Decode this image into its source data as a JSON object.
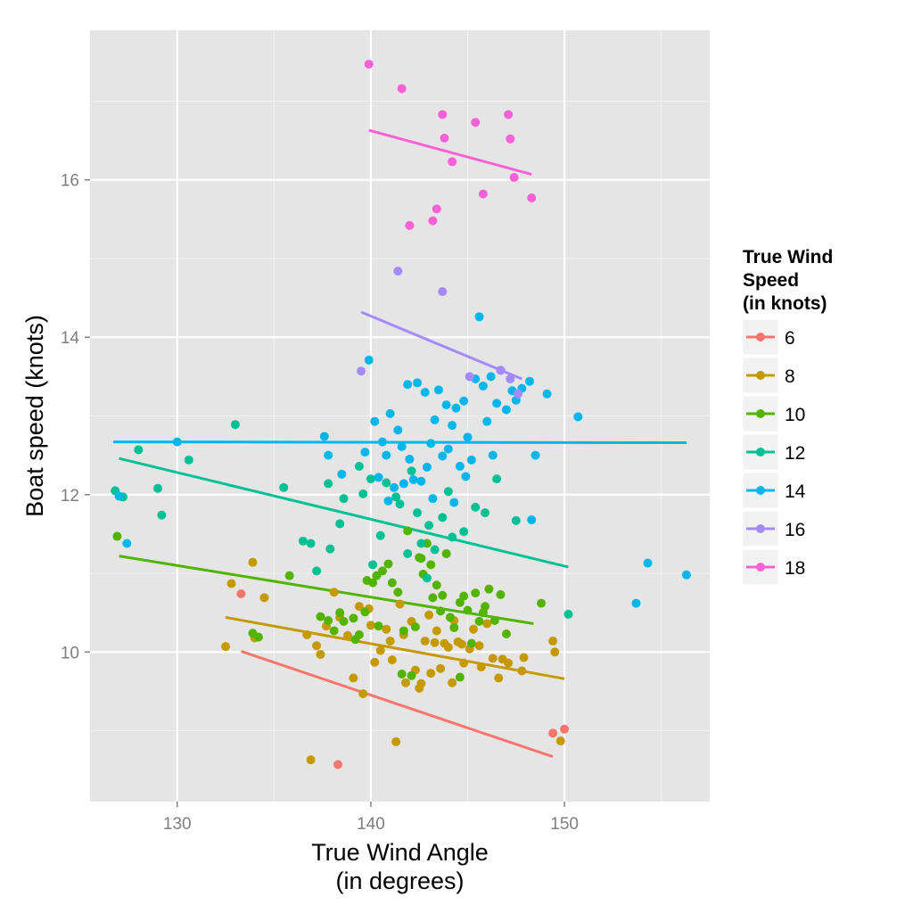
{
  "chart_data": {
    "type": "scatter",
    "xlabel": [
      "True Wind Angle",
      "(in degrees)"
    ],
    "ylabel": "Boat speed (knots)",
    "xlim": [
      125.5,
      157.5
    ],
    "ylim": [
      8.1,
      17.9
    ],
    "x_ticks": [
      130,
      140,
      150
    ],
    "y_ticks": [
      10,
      12,
      14,
      16
    ],
    "grid": true,
    "legend": {
      "title": [
        "True Wind",
        " Speed",
        " (in knots)"
      ],
      "placement": "right"
    },
    "series": [
      {
        "name": "6",
        "color": "#F8766D",
        "points": [
          [
            133.3,
            10.74
          ],
          [
            138.3,
            8.57
          ],
          [
            149.4,
            8.97
          ],
          [
            150.0,
            9.02
          ]
        ],
        "trend": [
          [
            133.3,
            10.01
          ],
          [
            149.4,
            8.67
          ]
        ]
      },
      {
        "name": "8",
        "color": "#C49A00",
        "points": [
          [
            132.5,
            10.07
          ],
          [
            132.8,
            10.87
          ],
          [
            133.9,
            11.14
          ],
          [
            134.0,
            10.18
          ],
          [
            134.5,
            10.69
          ],
          [
            136.7,
            10.22
          ],
          [
            137.2,
            10.08
          ],
          [
            137.4,
            9.97
          ],
          [
            137.7,
            10.33
          ],
          [
            138.1,
            10.76
          ],
          [
            138.4,
            10.44
          ],
          [
            138.8,
            10.21
          ],
          [
            139.1,
            9.67
          ],
          [
            139.4,
            10.58
          ],
          [
            139.6,
            9.47
          ],
          [
            139.9,
            10.55
          ],
          [
            140.0,
            10.34
          ],
          [
            140.2,
            9.87
          ],
          [
            140.5,
            10.02
          ],
          [
            140.8,
            10.29
          ],
          [
            141.0,
            10.14
          ],
          [
            141.1,
            9.9
          ],
          [
            141.3,
            8.86
          ],
          [
            141.5,
            10.61
          ],
          [
            141.7,
            10.22
          ],
          [
            141.8,
            9.61
          ],
          [
            142.1,
            10.39
          ],
          [
            142.3,
            9.77
          ],
          [
            142.5,
            9.54
          ],
          [
            142.6,
            9.6
          ],
          [
            142.8,
            10.14
          ],
          [
            143.0,
            10.47
          ],
          [
            143.1,
            9.73
          ],
          [
            143.3,
            10.12
          ],
          [
            143.4,
            10.27
          ],
          [
            143.6,
            9.79
          ],
          [
            143.8,
            10.11
          ],
          [
            144.0,
            10.06
          ],
          [
            144.2,
            9.61
          ],
          [
            144.3,
            10.4
          ],
          [
            144.5,
            10.13
          ],
          [
            144.7,
            10.1
          ],
          [
            144.8,
            9.86
          ],
          [
            145.1,
            10.04
          ],
          [
            145.3,
            10.29
          ],
          [
            145.6,
            10.08
          ],
          [
            145.7,
            9.81
          ],
          [
            146.0,
            10.36
          ],
          [
            146.3,
            9.92
          ],
          [
            146.6,
            9.67
          ],
          [
            146.8,
            9.91
          ],
          [
            147.1,
            9.86
          ],
          [
            147.8,
            9.76
          ],
          [
            147.9,
            9.93
          ],
          [
            149.4,
            10.14
          ],
          [
            149.5,
            10.0
          ],
          [
            149.8,
            8.87
          ],
          [
            136.9,
            8.63
          ]
        ],
        "trend": [
          [
            132.5,
            10.44
          ],
          [
            150.0,
            9.66
          ]
        ]
      },
      {
        "name": "10",
        "color": "#53B400",
        "points": [
          [
            126.9,
            11.47
          ],
          [
            133.9,
            10.24
          ],
          [
            134.2,
            10.19
          ],
          [
            135.8,
            10.97
          ],
          [
            137.4,
            10.45
          ],
          [
            137.8,
            10.4
          ],
          [
            138.1,
            10.27
          ],
          [
            138.4,
            10.5
          ],
          [
            138.6,
            10.39
          ],
          [
            139.1,
            10.43
          ],
          [
            139.4,
            10.22
          ],
          [
            139.7,
            10.51
          ],
          [
            139.8,
            10.91
          ],
          [
            140.1,
            10.88
          ],
          [
            140.3,
            10.97
          ],
          [
            140.6,
            11.03
          ],
          [
            140.9,
            11.12
          ],
          [
            141.1,
            10.88
          ],
          [
            141.4,
            10.76
          ],
          [
            141.7,
            10.27
          ],
          [
            141.9,
            11.54
          ],
          [
            142.1,
            9.7
          ],
          [
            142.3,
            10.32
          ],
          [
            142.5,
            11.2
          ],
          [
            142.7,
            10.99
          ],
          [
            142.9,
            11.38
          ],
          [
            143.2,
            10.69
          ],
          [
            143.4,
            10.85
          ],
          [
            143.6,
            10.52
          ],
          [
            143.7,
            10.72
          ],
          [
            143.9,
            11.25
          ],
          [
            144.1,
            10.44
          ],
          [
            144.3,
            10.31
          ],
          [
            144.6,
            10.63
          ],
          [
            144.8,
            10.71
          ],
          [
            145.0,
            10.53
          ],
          [
            145.2,
            10.11
          ],
          [
            145.4,
            10.75
          ],
          [
            145.6,
            10.39
          ],
          [
            145.8,
            10.5
          ],
          [
            145.9,
            10.58
          ],
          [
            146.1,
            10.8
          ],
          [
            146.4,
            10.4
          ],
          [
            146.7,
            10.73
          ],
          [
            147.0,
            10.23
          ],
          [
            148.8,
            10.62
          ],
          [
            142.6,
            11.19
          ],
          [
            141.6,
            9.72
          ],
          [
            144.6,
            9.68
          ],
          [
            140.4,
            10.33
          ],
          [
            139.2,
            10.16
          ],
          [
            143.1,
            11.11
          ]
        ],
        "trend": [
          [
            127.0,
            11.22
          ],
          [
            148.4,
            10.36
          ]
        ]
      },
      {
        "name": "12",
        "color": "#00C094",
        "points": [
          [
            126.8,
            12.05
          ],
          [
            127.2,
            11.97
          ],
          [
            128.0,
            12.57
          ],
          [
            129.0,
            12.08
          ],
          [
            129.2,
            11.74
          ],
          [
            130.6,
            12.44
          ],
          [
            133.0,
            12.89
          ],
          [
            135.5,
            12.09
          ],
          [
            136.5,
            11.41
          ],
          [
            136.9,
            11.38
          ],
          [
            137.2,
            11.03
          ],
          [
            137.8,
            12.14
          ],
          [
            137.9,
            11.31
          ],
          [
            138.4,
            11.63
          ],
          [
            138.6,
            11.95
          ],
          [
            139.4,
            12.36
          ],
          [
            139.6,
            12.01
          ],
          [
            140.0,
            12.2
          ],
          [
            140.5,
            11.48
          ],
          [
            140.8,
            12.15
          ],
          [
            141.3,
            11.97
          ],
          [
            141.5,
            11.88
          ],
          [
            141.9,
            11.25
          ],
          [
            142.1,
            12.3
          ],
          [
            142.4,
            11.77
          ],
          [
            142.6,
            11.38
          ],
          [
            143.0,
            11.61
          ],
          [
            143.3,
            11.3
          ],
          [
            143.7,
            11.71
          ],
          [
            144.0,
            12.04
          ],
          [
            144.2,
            11.46
          ],
          [
            144.8,
            11.53
          ],
          [
            145.4,
            11.84
          ],
          [
            146.5,
            12.2
          ],
          [
            147.5,
            11.67
          ],
          [
            150.2,
            10.48
          ],
          [
            145.9,
            11.77
          ],
          [
            142.9,
            10.94
          ],
          [
            140.1,
            11.11
          ]
        ],
        "trend": [
          [
            127.0,
            12.46
          ],
          [
            150.2,
            11.08
          ]
        ]
      },
      {
        "name": "14",
        "color": "#00B6EB",
        "points": [
          [
            127.0,
            11.98
          ],
          [
            127.4,
            11.38
          ],
          [
            130.0,
            12.67
          ],
          [
            137.6,
            12.74
          ],
          [
            137.8,
            12.5
          ],
          [
            138.5,
            12.26
          ],
          [
            139.7,
            12.54
          ],
          [
            139.9,
            13.71
          ],
          [
            140.2,
            12.93
          ],
          [
            140.4,
            12.22
          ],
          [
            140.6,
            12.67
          ],
          [
            140.8,
            12.5
          ],
          [
            141.0,
            13.03
          ],
          [
            141.2,
            12.09
          ],
          [
            141.4,
            12.82
          ],
          [
            141.6,
            12.61
          ],
          [
            141.9,
            13.4
          ],
          [
            142.0,
            12.45
          ],
          [
            142.2,
            12.19
          ],
          [
            142.4,
            13.42
          ],
          [
            142.6,
            12.17
          ],
          [
            142.8,
            13.3
          ],
          [
            143.1,
            12.65
          ],
          [
            143.3,
            12.95
          ],
          [
            143.5,
            13.33
          ],
          [
            143.7,
            12.49
          ],
          [
            143.9,
            13.14
          ],
          [
            144.0,
            12.58
          ],
          [
            144.2,
            12.88
          ],
          [
            144.4,
            13.1
          ],
          [
            144.6,
            12.36
          ],
          [
            144.8,
            13.19
          ],
          [
            145.0,
            12.73
          ],
          [
            145.2,
            12.44
          ],
          [
            145.4,
            13.47
          ],
          [
            145.6,
            14.26
          ],
          [
            145.8,
            13.38
          ],
          [
            146.0,
            12.93
          ],
          [
            146.3,
            12.5
          ],
          [
            146.5,
            13.16
          ],
          [
            146.7,
            13.58
          ],
          [
            147.0,
            13.08
          ],
          [
            147.3,
            13.32
          ],
          [
            147.5,
            13.2
          ],
          [
            147.8,
            13.35
          ],
          [
            148.2,
            13.44
          ],
          [
            148.5,
            12.5
          ],
          [
            149.1,
            13.28
          ],
          [
            150.7,
            12.99
          ],
          [
            153.7,
            10.62
          ],
          [
            154.3,
            11.13
          ],
          [
            156.3,
            10.98
          ],
          [
            148.3,
            11.68
          ],
          [
            146.2,
            13.5
          ],
          [
            144.3,
            11.9
          ],
          [
            142.9,
            12.35
          ],
          [
            141.7,
            12.14
          ],
          [
            140.9,
            11.92
          ],
          [
            143.2,
            11.95
          ],
          [
            144.9,
            12.23
          ]
        ],
        "trend": [
          [
            126.7,
            12.67
          ],
          [
            156.3,
            12.66
          ]
        ]
      },
      {
        "name": "16",
        "color": "#A58AFF",
        "points": [
          [
            139.5,
            13.57
          ],
          [
            141.4,
            14.84
          ],
          [
            143.7,
            14.58
          ],
          [
            146.7,
            13.58
          ],
          [
            147.6,
            13.28
          ],
          [
            147.2,
            13.47
          ],
          [
            145.1,
            13.5
          ]
        ],
        "trend": [
          [
            139.5,
            14.32
          ],
          [
            147.8,
            13.47
          ]
        ]
      },
      {
        "name": "18",
        "color": "#FB61D7",
        "points": [
          [
            139.9,
            17.47
          ],
          [
            141.6,
            17.16
          ],
          [
            142.0,
            15.42
          ],
          [
            143.2,
            15.48
          ],
          [
            143.4,
            15.63
          ],
          [
            143.7,
            16.83
          ],
          [
            143.8,
            16.53
          ],
          [
            144.2,
            16.23
          ],
          [
            145.4,
            16.73
          ],
          [
            145.8,
            15.82
          ],
          [
            147.1,
            16.83
          ],
          [
            147.2,
            16.52
          ],
          [
            147.4,
            16.03
          ],
          [
            148.3,
            15.77
          ]
        ],
        "trend": [
          [
            139.9,
            16.63
          ],
          [
            148.3,
            16.07
          ]
        ]
      }
    ]
  }
}
